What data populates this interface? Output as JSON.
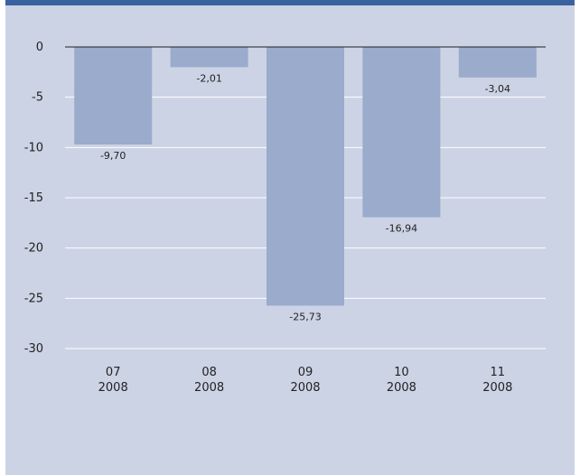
{
  "chart_data": {
    "type": "bar",
    "categories": [
      "07\n2008",
      "08\n2008",
      "09\n2008",
      "10\n2008",
      "11\n2008"
    ],
    "category_lines": [
      [
        "07",
        "2008"
      ],
      [
        "08",
        "2008"
      ],
      [
        "09",
        "2008"
      ],
      [
        "10",
        "2008"
      ],
      [
        "11",
        "2008"
      ]
    ],
    "values": [
      -9.7,
      -2.01,
      -25.73,
      -16.94,
      -3.04
    ],
    "value_labels": [
      "-9,70",
      "-2,01",
      "-25,73",
      "-16,94",
      "-3,04"
    ],
    "yticks": [
      0,
      -5,
      -10,
      -15,
      -20,
      -25,
      -30
    ],
    "ytick_labels": [
      "0",
      "-5",
      "-10",
      "-15",
      "-20",
      "-25",
      "-30"
    ],
    "ylim": [
      -30,
      0
    ],
    "grid": true,
    "colors": {
      "bar": "#9aabcc",
      "grid": "#ffffff",
      "zero_line": "#222222",
      "panel": "#ccd3e5",
      "header": "#3a62a0"
    }
  }
}
